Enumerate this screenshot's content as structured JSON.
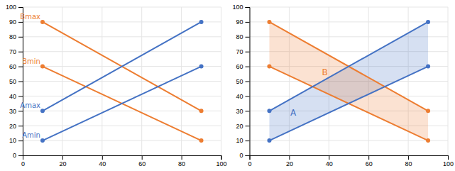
{
  "chart_data": [
    {
      "type": "line",
      "x": [
        10,
        90
      ],
      "series": [
        {
          "name": "Bmax",
          "color": "#ED7D31",
          "values": [
            90,
            30
          ]
        },
        {
          "name": "Bmin",
          "color": "#ED7D31",
          "values": [
            60,
            10
          ]
        },
        {
          "name": "Amax",
          "color": "#4472C4",
          "values": [
            30,
            90
          ]
        },
        {
          "name": "Amin",
          "color": "#4472C4",
          "values": [
            10,
            60
          ]
        }
      ],
      "marker": "circle",
      "xlim": [
        0,
        100
      ],
      "ylim": [
        0,
        100
      ],
      "xticks": [
        0,
        20,
        40,
        60,
        80,
        100
      ],
      "yticks": [
        0,
        10,
        20,
        30,
        40,
        50,
        60,
        70,
        80,
        90,
        100
      ],
      "grid": true
    },
    {
      "type": "line",
      "x": [
        10,
        90
      ],
      "bands": [
        {
          "name": "A",
          "color": "#4472C4",
          "lower": [
            10,
            60
          ],
          "upper": [
            30,
            90
          ]
        },
        {
          "name": "B",
          "color": "#ED7D31",
          "lower": [
            60,
            10
          ],
          "upper": [
            90,
            30
          ]
        }
      ],
      "series": [
        {
          "color": "#ED7D31",
          "values": [
            90,
            30
          ]
        },
        {
          "color": "#ED7D31",
          "values": [
            60,
            10
          ]
        },
        {
          "color": "#4472C4",
          "values": [
            30,
            90
          ]
        },
        {
          "color": "#4472C4",
          "values": [
            10,
            60
          ]
        }
      ],
      "marker": "circle",
      "xlim": [
        0,
        100
      ],
      "ylim": [
        0,
        100
      ],
      "xticks": [
        0,
        20,
        40,
        60,
        80,
        100
      ],
      "yticks": [
        0,
        10,
        20,
        30,
        40,
        50,
        60,
        70,
        80,
        90,
        100
      ],
      "grid": true
    }
  ]
}
